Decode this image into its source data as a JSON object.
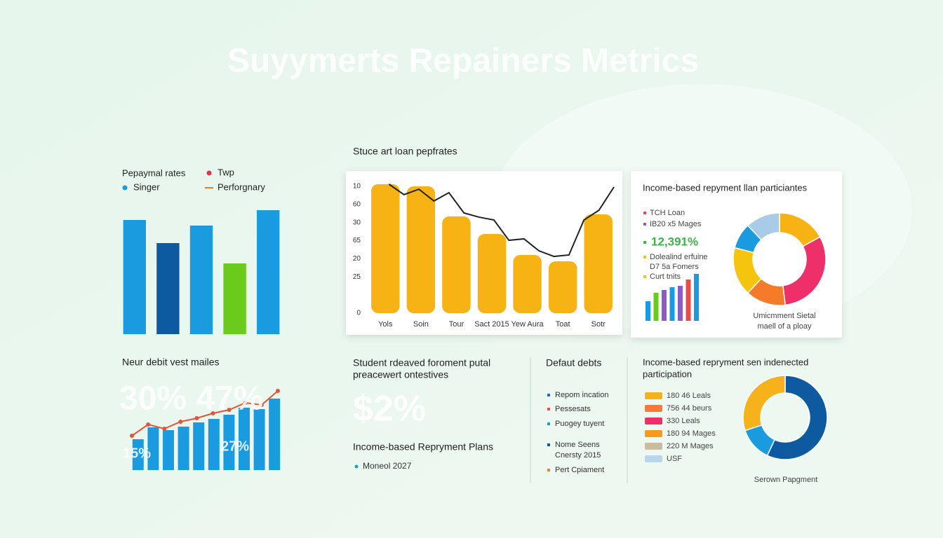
{
  "header": {
    "title": "Suyymerts Repainers Metrics"
  },
  "chart_data": [
    {
      "type": "bar",
      "legend": [
        {
          "name": "Pepaymal rates"
        },
        {
          "name": "Twp",
          "color": "#e0334f",
          "marker": "dot"
        },
        {
          "name": "Singer",
          "color": "#1a9be0",
          "marker": "dot"
        },
        {
          "name": "Perforgnary",
          "color": "#f07a2a",
          "marker": "line"
        }
      ],
      "categories": [
        null,
        null,
        null,
        null,
        null
      ],
      "values": [
        163,
        130,
        155,
        101,
        177
      ],
      "colors": [
        "#1a9be0",
        "#0d5aa0",
        "#1a9be0",
        "#6acb1c",
        "#1a9be0"
      ],
      "ylim": [
        0,
        180
      ]
    },
    {
      "type": "bar",
      "title": "Stuce art loan pepfrates",
      "categories": [
        "Yols",
        "Soin",
        "Tour",
        "Sact 2015",
        "Yew Aura",
        "Toat",
        "Sotr"
      ],
      "values": [
        71.2,
        70,
        53.4,
        43.7,
        32.1,
        28.6,
        54.5
      ],
      "color": "#f7b313",
      "line": {
        "color": "#222222",
        "values": [
          71.2,
          65.4,
          68.4,
          61.9,
          66.5,
          55.3,
          53,
          51.4,
          40.2,
          41,
          34.4,
          31.3,
          32.1,
          51.4,
          56.8,
          69.6
        ]
      },
      "ylim": [
        0,
        72
      ],
      "yticks": [
        0,
        {
          "value": 20,
          "label": "25"
        },
        {
          "value": 30,
          "label": "20"
        },
        {
          "value": 40,
          "label": "65"
        },
        {
          "value": 50,
          "label": "30"
        },
        60,
        {
          "value": 70,
          "label": "10"
        }
      ],
      "grid": false
    },
    {
      "type": "pie",
      "title": "Income-based repyment llan particiantes",
      "legend": [
        {
          "name": "TCH Loan",
          "color": "#e94b4b"
        },
        {
          "name": "IB20 x5 Mages",
          "color": "#8a5cc8"
        }
      ],
      "highlight": {
        "text": "12,391%",
        "color": "#3cb34a"
      },
      "legend2": [
        {
          "name": "Dolealind erfuine",
          "color": "#f3c21b"
        },
        {
          "name": "D7 5a Fomers"
        },
        {
          "name": "Curt tnits",
          "color": "#f3c21b"
        }
      ],
      "mini_bars": {
        "values": [
          28,
          40,
          44,
          48,
          50,
          59,
          67
        ],
        "colors": [
          "#1a9be0",
          "#6acb1c",
          "#8a5cc8",
          "#1a9be0",
          "#8a5cc8",
          "#e94b4b",
          "#1a9be0"
        ],
        "ylim": [
          0,
          70
        ]
      },
      "values": [
        17,
        31,
        14,
        17,
        9,
        12
      ],
      "colors": [
        "#f7b313",
        "#ef2f6a",
        "#f57a2a",
        "#f5c40f",
        "#1a9be0",
        "#a8cbe8"
      ],
      "caption": [
        "Umicmment Sietal",
        "maell of a ploay"
      ]
    },
    {
      "type": "bar",
      "title": "Neur debit vest mailes",
      "categories": [
        null,
        null,
        null,
        null,
        null,
        null,
        null,
        null,
        null,
        null
      ],
      "values": [
        44,
        61,
        57,
        62,
        68,
        73,
        79,
        89,
        87,
        102
      ],
      "color": "#1a9be0",
      "line": {
        "color": "#e2553a",
        "values": [
          49,
          65,
          59,
          69,
          74,
          81,
          86,
          96,
          93,
          113
        ]
      },
      "annotations": [
        "30% 47%",
        "15%",
        "27%"
      ],
      "ylim": [
        0,
        120
      ]
    },
    {
      "type": "pie",
      "title": [
        "Income-based repryment sen indenected",
        "participation"
      ],
      "legend": [
        {
          "name": "180 46 Leals",
          "color": "#f5b21a"
        },
        {
          "name": "756 44 beurs",
          "color": "#f57a3a"
        },
        {
          "name": "330 Leals",
          "color": "#ef2f6a"
        },
        {
          "name": "180 94 Mages",
          "color": "#f59a1a"
        },
        {
          "name": "220 M Mages",
          "color": "#c9bca0"
        },
        {
          "name": "USF",
          "color": "#b9d5ee"
        }
      ],
      "values": [
        57,
        13,
        30
      ],
      "colors": [
        "#0d5aa0",
        "#1a9be0",
        "#f5b21a"
      ],
      "caption": [
        "Serown Papgment"
      ]
    }
  ],
  "panels": {
    "student": {
      "title": [
        "Student rdeaved foroment putal",
        "preacewert ontestives"
      ],
      "big": "$2%",
      "subtitle": "Income-based Repryment Plans",
      "items": [
        {
          "name": "Moneol 2027",
          "color": "#1aa5b8"
        }
      ]
    },
    "default": {
      "title": "Defaut debts",
      "items": [
        {
          "name": "Repom incation",
          "color": "#1a6fc0"
        },
        {
          "name": "Pessesats",
          "color": "#e2553a"
        },
        {
          "name": "Puogey tuyent",
          "color": "#1a9be0"
        },
        {
          "name": "Nome Seens",
          "color": "#0d5aa0"
        },
        {
          "name": "Cnersty 2015"
        },
        {
          "name": "Pert Cpiament",
          "color": "#f57a2a"
        }
      ]
    }
  }
}
